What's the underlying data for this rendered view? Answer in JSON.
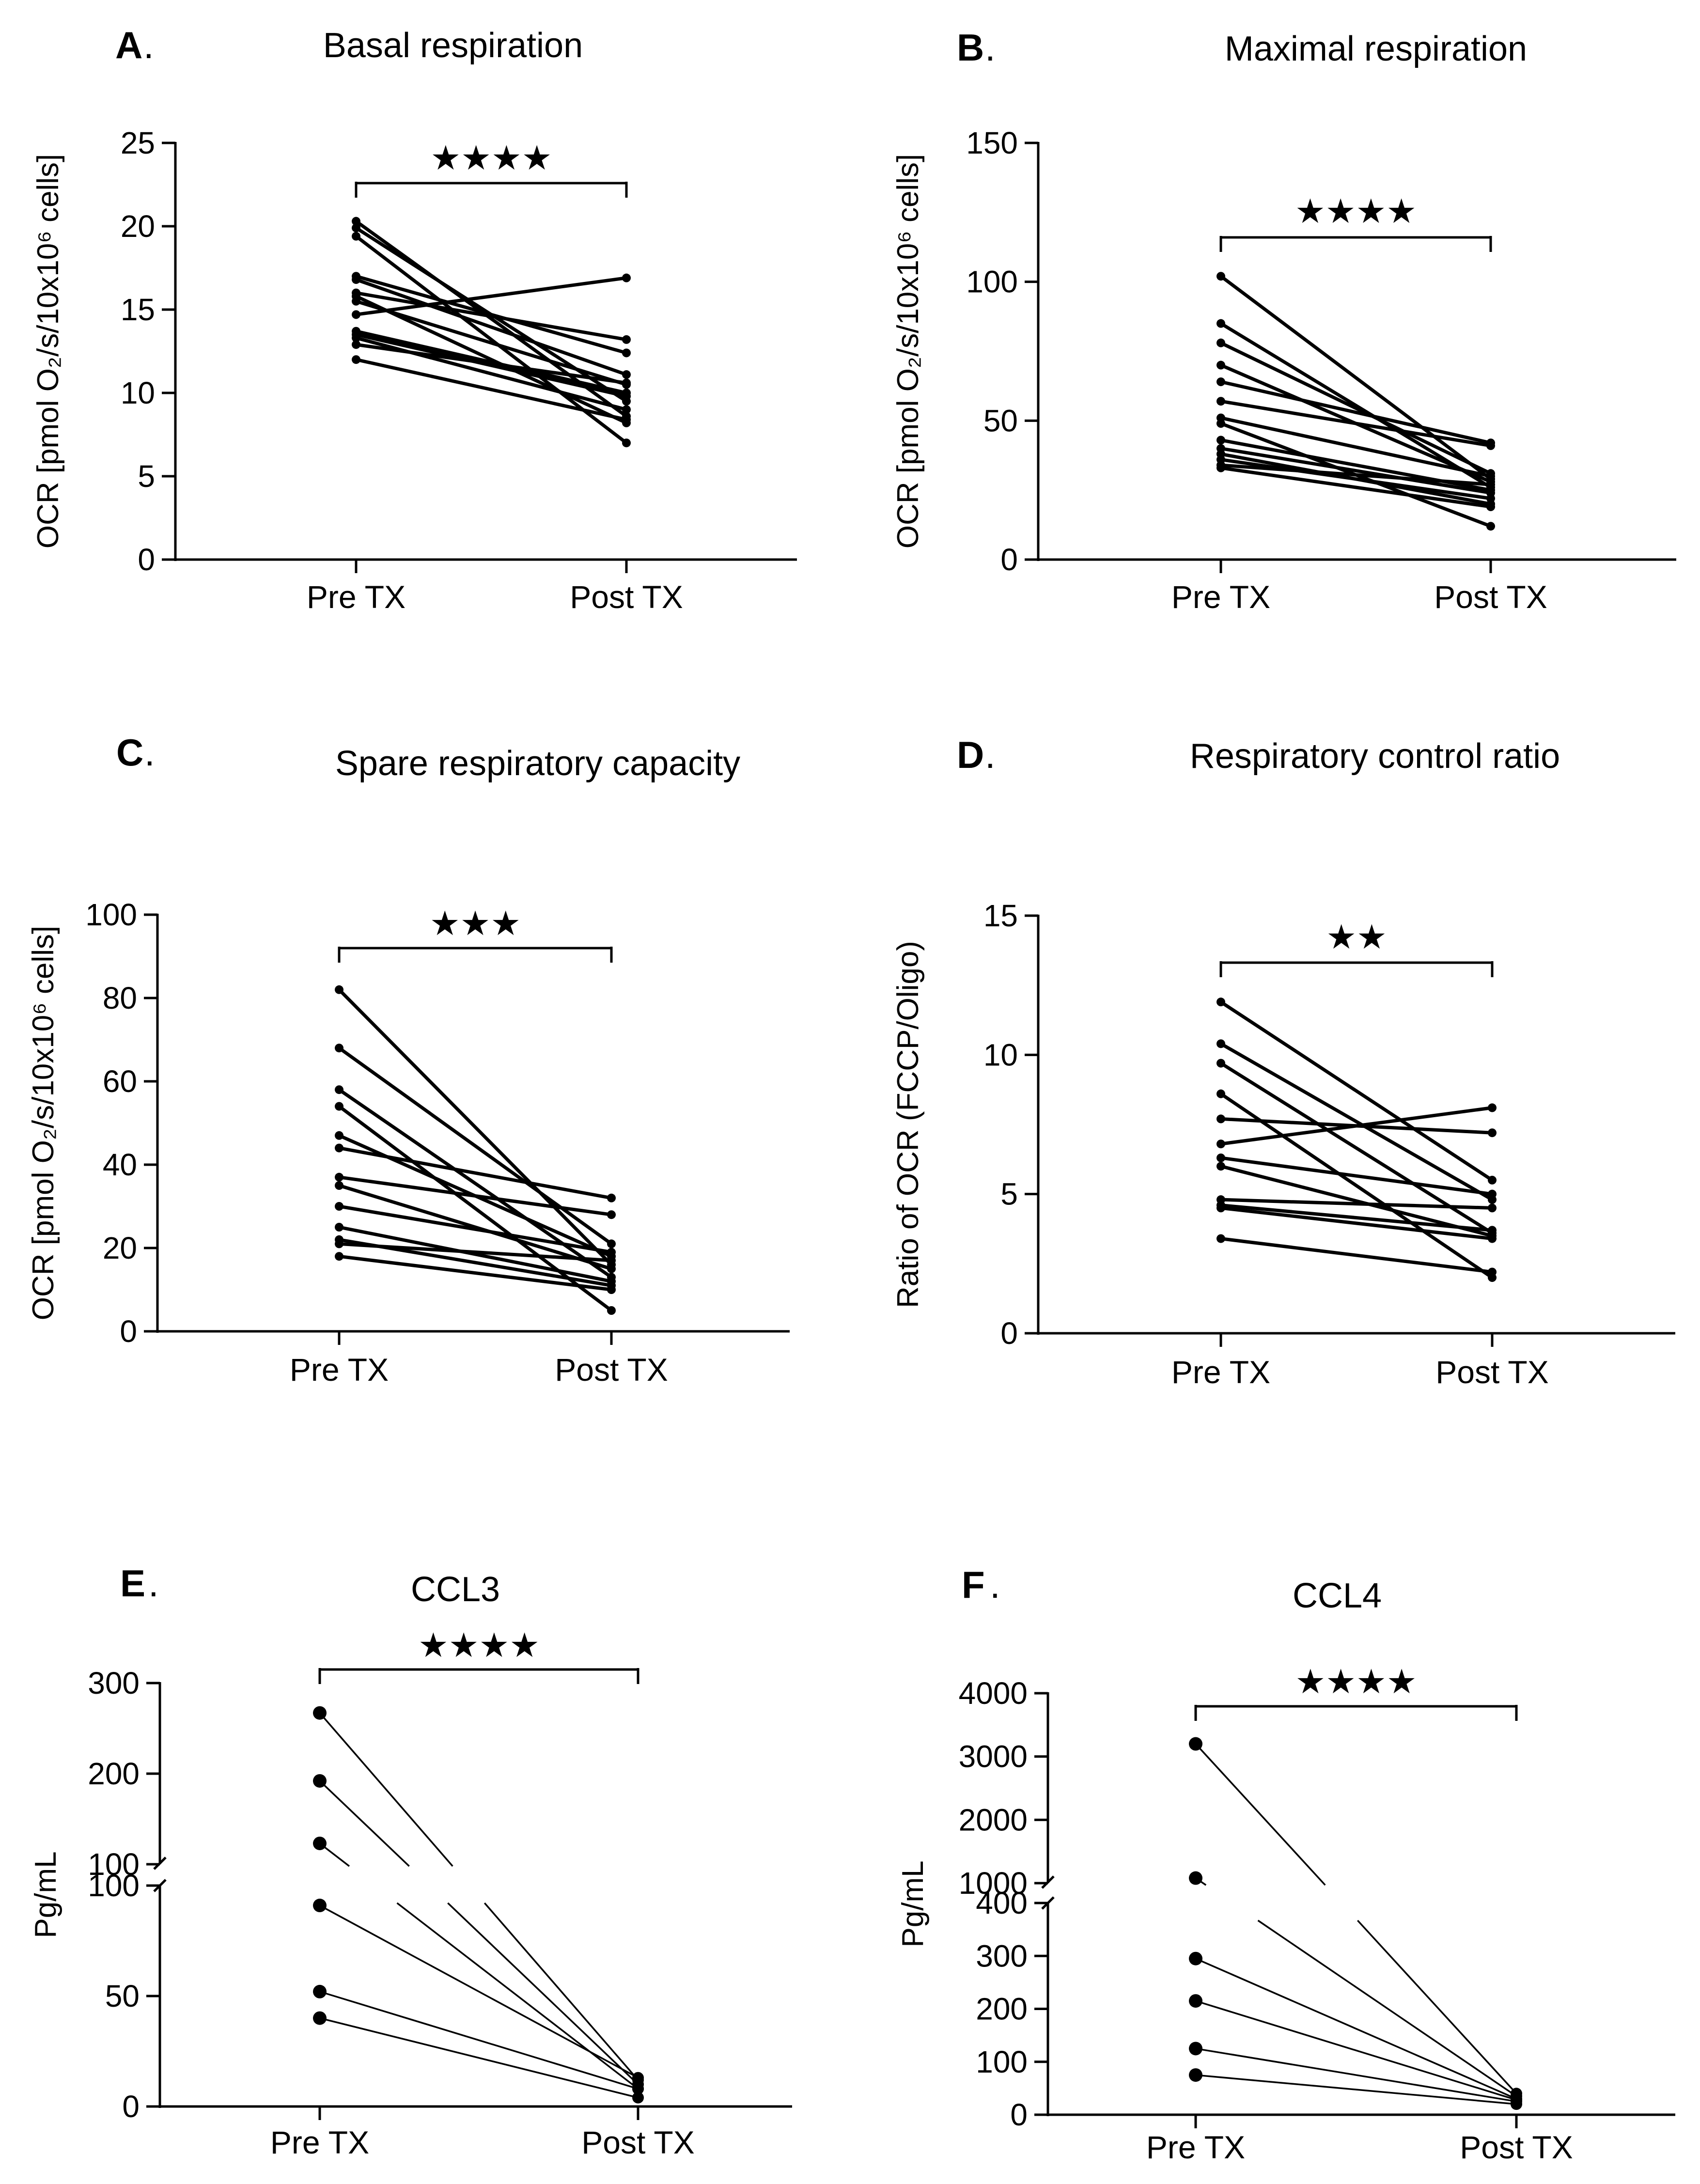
{
  "figure": {
    "panels": [
      {
        "id": "A",
        "label": "A",
        "title": "Basal respiration",
        "ylabel": "OCR [pmol O₂/s/10x10⁶ cells]",
        "y_ticks": [
          "0",
          "5",
          "10",
          "15",
          "20",
          "25"
        ],
        "categories": [
          "Pre TX",
          "Post TX"
        ],
        "significance": "★★★★"
      },
      {
        "id": "B",
        "label": "B",
        "title": "Maximal respiration",
        "ylabel": "OCR [pmol O₂/s/10x10⁶ cells]",
        "y_ticks": [
          "0",
          "50",
          "100",
          "150"
        ],
        "categories": [
          "Pre TX",
          "Post TX"
        ],
        "significance": "★★★★"
      },
      {
        "id": "C",
        "label": "C",
        "title": "Spare respiratory capacity",
        "ylabel": "OCR [pmol O₂/s/10x10⁶ cells]",
        "y_ticks": [
          "0",
          "20",
          "40",
          "60",
          "80",
          "100"
        ],
        "categories": [
          "Pre TX",
          "Post TX"
        ],
        "significance": "★★★"
      },
      {
        "id": "D",
        "label": "D",
        "title": "Respiratory control ratio",
        "ylabel": "Ratio of OCR (FCCP/Oligo)",
        "y_ticks": [
          "0",
          "5",
          "10",
          "15"
        ],
        "categories": [
          "Pre TX",
          "Post TX"
        ],
        "significance": "★★"
      },
      {
        "id": "E",
        "label": "E",
        "title": "CCL3",
        "ylabel": "Pg/mL",
        "y_ticks_lower": [
          "0",
          "50",
          "100"
        ],
        "y_ticks_upper": [
          "100",
          "200",
          "300"
        ],
        "categories": [
          "Pre TX",
          "Post TX"
        ],
        "significance": "★★★★"
      },
      {
        "id": "F",
        "label": "F",
        "title": "CCL4",
        "ylabel": "Pg/mL",
        "y_ticks_lower": [
          "0",
          "100",
          "200",
          "300",
          "400"
        ],
        "y_ticks_upper": [
          "1000",
          "2000",
          "3000",
          "4000"
        ],
        "categories": [
          "Pre TX",
          "Post TX"
        ],
        "significance": "★★★★"
      }
    ]
  },
  "chart_data": [
    {
      "type": "line",
      "panel": "A",
      "title": "Basal respiration",
      "xlabel": "",
      "ylabel": "OCR [pmol O2/s/10x10^6 cells]",
      "categories": [
        "Pre TX",
        "Post TX"
      ],
      "ylim": [
        0,
        25
      ],
      "significance": "****",
      "pairs": [
        [
          20.3,
          8.6
        ],
        [
          19.9,
          9.5
        ],
        [
          19.4,
          7.0
        ],
        [
          17.0,
          12.4
        ],
        [
          16.8,
          11.1
        ],
        [
          16.0,
          13.2
        ],
        [
          15.8,
          8.2
        ],
        [
          15.5,
          10.5
        ],
        [
          14.7,
          16.9
        ],
        [
          13.7,
          10.0
        ],
        [
          13.5,
          9.8
        ],
        [
          13.3,
          9.0
        ],
        [
          12.9,
          10.6
        ],
        [
          12.0,
          8.4
        ]
      ]
    },
    {
      "type": "line",
      "panel": "B",
      "title": "Maximal respiration",
      "xlabel": "",
      "ylabel": "OCR [pmol O2/s/10x10^6 cells]",
      "categories": [
        "Pre TX",
        "Post TX"
      ],
      "ylim": [
        0,
        150
      ],
      "significance": "****",
      "pairs": [
        [
          102,
          29
        ],
        [
          85,
          26
        ],
        [
          78,
          31
        ],
        [
          70,
          28
        ],
        [
          64,
          42
        ],
        [
          57,
          41
        ],
        [
          51,
          30
        ],
        [
          49,
          12
        ],
        [
          40,
          24
        ],
        [
          38,
          20
        ],
        [
          34,
          27
        ],
        [
          33,
          19
        ],
        [
          43,
          25
        ],
        [
          36,
          22
        ]
      ]
    },
    {
      "type": "line",
      "panel": "C",
      "title": "Spare respiratory capacity",
      "xlabel": "",
      "ylabel": "OCR [pmol O2/s/10x10^6 cells]",
      "categories": [
        "Pre TX",
        "Post TX"
      ],
      "ylim": [
        0,
        100
      ],
      "significance": "***",
      "pairs": [
        [
          82,
          16
        ],
        [
          68,
          21
        ],
        [
          58,
          13
        ],
        [
          54,
          5
        ],
        [
          47,
          18
        ],
        [
          44,
          32
        ],
        [
          37,
          28
        ],
        [
          35,
          15
        ],
        [
          30,
          19
        ],
        [
          25,
          12
        ],
        [
          22,
          11
        ],
        [
          21,
          17
        ],
        [
          18,
          10
        ]
      ]
    },
    {
      "type": "line",
      "panel": "D",
      "title": "Respiratory control ratio",
      "xlabel": "",
      "ylabel": "Ratio of OCR (FCCP/Oligo)",
      "categories": [
        "Pre TX",
        "Post TX"
      ],
      "ylim": [
        0,
        15
      ],
      "significance": "**",
      "pairs": [
        [
          11.9,
          5.5
        ],
        [
          10.4,
          4.8
        ],
        [
          9.7,
          3.6
        ],
        [
          8.6,
          2.0
        ],
        [
          7.7,
          7.2
        ],
        [
          6.8,
          8.1
        ],
        [
          6.3,
          5.0
        ],
        [
          6.0,
          3.5
        ],
        [
          4.8,
          4.5
        ],
        [
          4.6,
          3.7
        ],
        [
          4.5,
          3.4
        ],
        [
          3.4,
          2.2
        ]
      ]
    },
    {
      "type": "line",
      "panel": "E",
      "title": "CCL3",
      "xlabel": "",
      "ylabel": "Pg/mL",
      "categories": [
        "Pre TX",
        "Post TX"
      ],
      "y_axis_break": [
        100,
        100
      ],
      "ylim_lower": [
        0,
        100
      ],
      "ylim_upper": [
        100,
        300
      ],
      "significance": "****",
      "pairs": [
        [
          267,
          12
        ],
        [
          192,
          10
        ],
        [
          123,
          8
        ],
        [
          91,
          13
        ],
        [
          52,
          8
        ],
        [
          40,
          4
        ]
      ]
    },
    {
      "type": "line",
      "panel": "F",
      "title": "CCL4",
      "xlabel": "",
      "ylabel": "Pg/mL",
      "categories": [
        "Pre TX",
        "Post TX"
      ],
      "y_axis_break": [
        400,
        1000
      ],
      "ylim_lower": [
        0,
        400
      ],
      "ylim_upper": [
        1000,
        4000
      ],
      "significance": "****",
      "pairs": [
        [
          3200,
          40
        ],
        [
          1080,
          35
        ],
        [
          295,
          30
        ],
        [
          215,
          28
        ],
        [
          125,
          25
        ],
        [
          75,
          20
        ]
      ]
    }
  ]
}
